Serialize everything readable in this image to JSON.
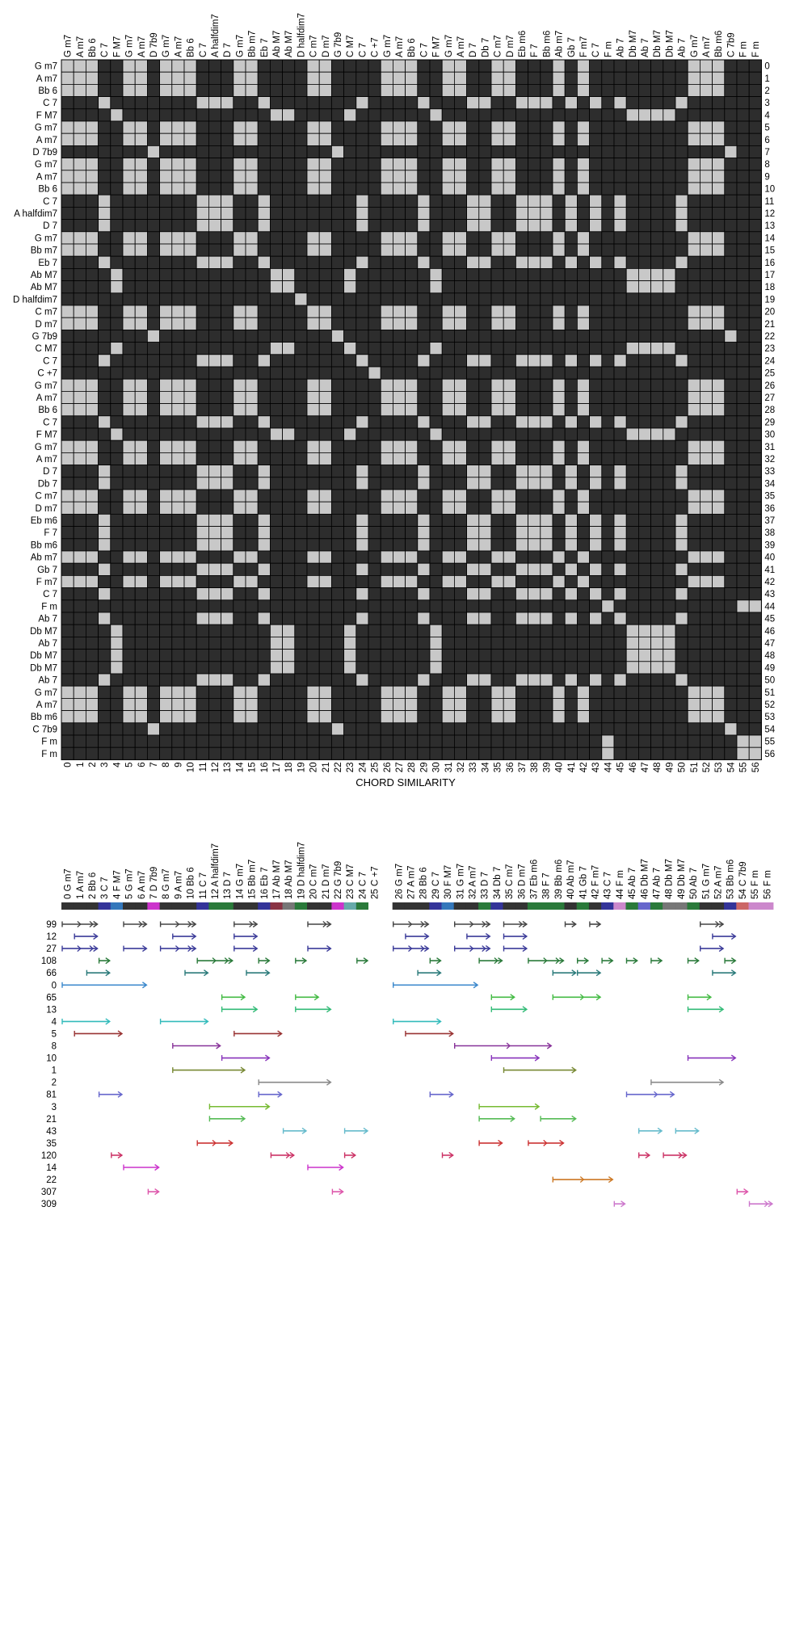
{
  "chart_data": [
    {
      "type": "heatmap",
      "title": "",
      "xlabel": "CHORD SIMILARITY",
      "ylabel": "",
      "chords": [
        "G m7",
        "A m7",
        "Bb 6",
        "C 7",
        "F M7",
        "G m7",
        "A m7",
        "D 7b9",
        "G m7",
        "A m7",
        "Bb 6",
        "C 7",
        "A halfdim7",
        "D 7",
        "G m7",
        "Bb m7",
        "Eb 7",
        "Ab M7",
        "Ab M7",
        "D halfdim7",
        "C m7",
        "D m7",
        "G 7b9",
        "C M7",
        "C 7",
        "C +7",
        "G m7",
        "A m7",
        "Bb 6",
        "C 7",
        "F M7",
        "G m7",
        "A m7",
        "D 7",
        "Db 7",
        "C m7",
        "D m7",
        "Eb m6",
        "F 7",
        "Bb m6",
        "Ab m7",
        "Gb 7",
        "F m7",
        "C 7",
        "F m",
        "Ab 7",
        "Db M7",
        "Ab 7",
        "Db M7",
        "Db M7",
        "Ab 7",
        "G m7",
        "A m7",
        "Bb m6",
        "C 7b9",
        "F m",
        "F m"
      ],
      "similarity_groups": [
        [
          0,
          1,
          2,
          5,
          6,
          8,
          9,
          10,
          14,
          15,
          20,
          21,
          26,
          27,
          28,
          31,
          32,
          35,
          36,
          40,
          42,
          51,
          52,
          53
        ],
        [
          3,
          11,
          12,
          13,
          16,
          24,
          29,
          33,
          34,
          37,
          38,
          39,
          41,
          43,
          45,
          50
        ],
        [
          4,
          17,
          18,
          23,
          30,
          46,
          47,
          48,
          49
        ],
        [
          7,
          22,
          54
        ],
        [
          44,
          55,
          56
        ],
        [
          19
        ],
        [
          25
        ]
      ],
      "colors": {
        "on": "#c8c8c8",
        "off": "#2d2d2d",
        "grid": "#000000"
      }
    },
    {
      "type": "timeline",
      "chords": [
        "G m7",
        "A m7",
        "Bb 6",
        "C 7",
        "F M7",
        "G m7",
        "A m7",
        "D 7b9",
        "G m7",
        "A m7",
        "Bb 6",
        "C 7",
        "A halfdim7",
        "D 7",
        "G m7",
        "Bb m7",
        "Eb 7",
        "Ab M7",
        "Ab M7",
        "D halfdim7",
        "C m7",
        "D m7",
        "G 7b9",
        "C M7",
        "C 7",
        "C +7",
        "G m7",
        "A m7",
        "Bb 6",
        "C 7",
        "F M7",
        "G m7",
        "A m7",
        "D 7",
        "Db 7",
        "C m7",
        "D m7",
        "Eb m6",
        "F 7",
        "Bb m6",
        "Ab m7",
        "Gb 7",
        "F m7",
        "C 7",
        "F m",
        "Ab 7",
        "Db M7",
        "Ab 7",
        "Db M7",
        "Db M7",
        "Ab 7",
        "G m7",
        "A m7",
        "Bb m6",
        "C 7b9",
        "F m",
        "F m"
      ],
      "index_labels": [
        "0",
        "1",
        "2",
        "3",
        "4",
        "5",
        "6",
        "7",
        "8",
        "9",
        "10",
        "11",
        "12",
        "13",
        "14",
        "15",
        "16",
        "17",
        "18",
        "19",
        "20",
        "21",
        "22",
        "23",
        "24",
        "25",
        "26",
        "27",
        "28",
        "29",
        "30",
        "31",
        "32",
        "33",
        "34",
        "35",
        "36",
        "37",
        "38",
        "39",
        "40",
        "41",
        "42",
        "43",
        "44",
        "45",
        "46",
        "47",
        "48",
        "49",
        "50",
        "51",
        "52",
        "53",
        "54",
        "55",
        "56"
      ],
      "color_bar": [
        "#333333",
        "#333333",
        "#333333",
        "#333399",
        "#3377bb",
        "#333333",
        "#333333",
        "#cc33cc",
        "#333333",
        "#333333",
        "#333333",
        "#333399",
        "#2a7a3a",
        "#2a7a3a",
        "#333333",
        "#333333",
        "#333399",
        "#8a3344",
        "#777777",
        "#2a7a3a",
        "#333333",
        "#333333",
        "#cc33cc",
        "#66aaaa",
        "#2a7a3a",
        "#ffffff",
        "#333333",
        "#333333",
        "#333333",
        "#333399",
        "#3377bb",
        "#333333",
        "#333333",
        "#2a7a3a",
        "#333399",
        "#333333",
        "#333333",
        "#2a7a3a",
        "#2a7a3a",
        "#2a7a3a",
        "#333333",
        "#2a7a3a",
        "#333333",
        "#333399",
        "#cc88cc",
        "#2a7a3a",
        "#6666cc",
        "#2a7a3a",
        "#777777",
        "#777777",
        "#2a7a3a",
        "#333333",
        "#333333",
        "#333399",
        "#cc6666",
        "#cc88cc",
        "#cc88cc"
      ],
      "patterns": [
        {
          "label": "99",
          "color": "#444444",
          "segments": [
            [
              0,
              3
            ],
            [
              5,
              7
            ],
            [
              8,
              11
            ],
            [
              14,
              16
            ],
            [
              20,
              22
            ],
            [
              26,
              29
            ],
            [
              31,
              34
            ],
            [
              35,
              37
            ],
            [
              40,
              41
            ],
            [
              42,
              43
            ],
            [
              51,
              53
            ]
          ],
          "marks": [
            1,
            2,
            6,
            9,
            10,
            15,
            21,
            27,
            28,
            32,
            33,
            36,
            52
          ]
        },
        {
          "label": "12",
          "color": "#3b3b99",
          "segments": [
            [
              1,
              3
            ],
            [
              9,
              11
            ],
            [
              14,
              16
            ],
            [
              27,
              29
            ],
            [
              32,
              34
            ],
            [
              35,
              37
            ],
            [
              52,
              54
            ]
          ],
          "marks": []
        },
        {
          "label": "27",
          "color": "#3b3b99",
          "segments": [
            [
              0,
              3
            ],
            [
              5,
              7
            ],
            [
              8,
              11
            ],
            [
              14,
              16
            ],
            [
              20,
              22
            ],
            [
              26,
              29
            ],
            [
              31,
              34
            ],
            [
              35,
              37
            ],
            [
              51,
              53
            ]
          ],
          "marks": [
            1,
            2,
            9,
            10,
            27,
            28,
            32,
            33
          ]
        },
        {
          "label": "108",
          "color": "#2a7a3a",
          "segments": [
            [
              3,
              4
            ],
            [
              11,
              14
            ],
            [
              16,
              17
            ],
            [
              19,
              20
            ],
            [
              24,
              25
            ],
            [
              29,
              30
            ],
            [
              33,
              35
            ],
            [
              37,
              40
            ],
            [
              41,
              42
            ],
            [
              43,
              44
            ],
            [
              45,
              46
            ],
            [
              47,
              48
            ],
            [
              50,
              51
            ],
            [
              53,
              54
            ]
          ],
          "marks": [
            12,
            13,
            34,
            38,
            39
          ]
        },
        {
          "label": "66",
          "color": "#2a7a7a",
          "segments": [
            [
              2,
              4
            ],
            [
              10,
              12
            ],
            [
              15,
              17
            ],
            [
              28,
              30
            ],
            [
              39,
              41
            ],
            [
              41,
              43
            ],
            [
              52,
              54
            ]
          ],
          "marks": []
        },
        {
          "label": "0",
          "color": "#3b88cc",
          "segments": [
            [
              0,
              7
            ],
            [
              26,
              33
            ]
          ],
          "marks": []
        },
        {
          "label": "65",
          "color": "#44bb44",
          "segments": [
            [
              13,
              15
            ],
            [
              19,
              21
            ],
            [
              34,
              36
            ],
            [
              39,
              43
            ],
            [
              50,
              52
            ]
          ],
          "marks": [
            41
          ]
        },
        {
          "label": "13",
          "color": "#33bb77",
          "segments": [
            [
              13,
              16
            ],
            [
              19,
              22
            ],
            [
              34,
              37
            ],
            [
              50,
              53
            ]
          ],
          "marks": []
        },
        {
          "label": "4",
          "color": "#33bbbb",
          "segments": [
            [
              0,
              4
            ],
            [
              8,
              12
            ],
            [
              26,
              30
            ]
          ],
          "marks": []
        },
        {
          "label": "5",
          "color": "#993333",
          "segments": [
            [
              1,
              5
            ],
            [
              14,
              18
            ],
            [
              27,
              31
            ]
          ],
          "marks": []
        },
        {
          "label": "8",
          "color": "#883399",
          "segments": [
            [
              9,
              13
            ],
            [
              31,
              39
            ]
          ],
          "marks": [
            35
          ]
        },
        {
          "label": "10",
          "color": "#8833bb",
          "segments": [
            [
              13,
              17
            ],
            [
              34,
              38
            ],
            [
              50,
              54
            ]
          ],
          "marks": []
        },
        {
          "label": "1",
          "color": "#778833",
          "segments": [
            [
              9,
              15
            ],
            [
              35,
              41
            ]
          ],
          "marks": []
        },
        {
          "label": "2",
          "color": "#888888",
          "segments": [
            [
              16,
              22
            ],
            [
              47,
              53
            ]
          ],
          "marks": []
        },
        {
          "label": "81",
          "color": "#6666cc",
          "segments": [
            [
              3,
              5
            ],
            [
              16,
              18
            ],
            [
              29,
              31
            ],
            [
              45,
              49
            ]
          ],
          "marks": [
            47
          ]
        },
        {
          "label": "3",
          "color": "#77bb33",
          "segments": [
            [
              12,
              17
            ],
            [
              33,
              38
            ]
          ],
          "marks": []
        },
        {
          "label": "21",
          "color": "#55bb55",
          "segments": [
            [
              12,
              15
            ],
            [
              33,
              36
            ],
            [
              38,
              41
            ]
          ],
          "marks": []
        },
        {
          "label": "43",
          "color": "#66bbcc",
          "segments": [
            [
              18,
              20
            ],
            [
              23,
              25
            ],
            [
              46,
              48
            ],
            [
              49,
              51
            ]
          ],
          "marks": []
        },
        {
          "label": "35",
          "color": "#cc3333",
          "segments": [
            [
              11,
              14
            ],
            [
              33,
              35
            ],
            [
              37,
              40
            ]
          ],
          "marks": [
            12,
            38
          ]
        },
        {
          "label": "120",
          "color": "#cc3366",
          "segments": [
            [
              4,
              5
            ],
            [
              17,
              19
            ],
            [
              23,
              24
            ],
            [
              30,
              31
            ],
            [
              46,
              47
            ],
            [
              48,
              50
            ]
          ],
          "marks": [
            18,
            49
          ]
        },
        {
          "label": "14",
          "color": "#cc33cc",
          "segments": [
            [
              5,
              8
            ],
            [
              20,
              23
            ]
          ],
          "marks": []
        },
        {
          "label": "22",
          "color": "#cc7722",
          "segments": [
            [
              39,
              44
            ]
          ],
          "marks": [
            41
          ]
        },
        {
          "label": "307",
          "color": "#dd55aa",
          "segments": [
            [
              7,
              8
            ],
            [
              22,
              23
            ],
            [
              54,
              55
            ]
          ],
          "marks": []
        },
        {
          "label": "309",
          "color": "#cc77cc",
          "segments": [
            [
              44,
              45
            ],
            [
              55,
              57
            ]
          ],
          "marks": [
            56
          ]
        }
      ]
    }
  ]
}
